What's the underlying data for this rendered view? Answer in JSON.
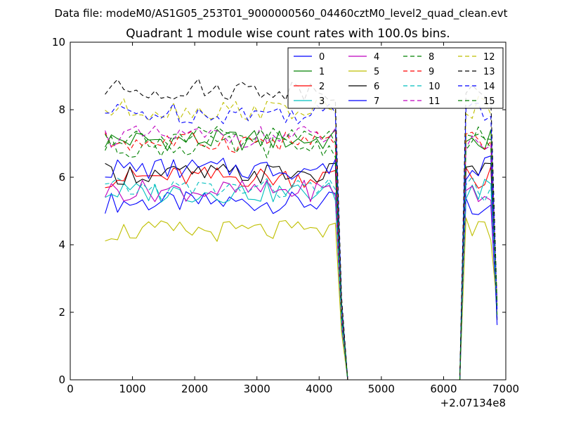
{
  "suptitle": "Data file: modeM0/AS1G05_253T01_9000000560_04460cztM0_level2_quad_clean.evt",
  "chart_data": {
    "type": "line",
    "title": "Quadrant 1 module wise count rates with 100.0s bins.",
    "xlabel": "",
    "ylabel": "",
    "xlim": [
      0,
      7000
    ],
    "ylim": [
      0,
      10
    ],
    "x_offset_label": "+2.07134e8",
    "xticks": [
      0,
      1000,
      2000,
      3000,
      4000,
      5000,
      6000,
      7000
    ],
    "xtick_labels": [
      "0",
      "1000",
      "2000",
      "3000",
      "4000",
      "5000",
      "6000",
      "7000"
    ],
    "yticks": [
      0,
      2,
      4,
      6,
      8,
      10
    ],
    "ytick_labels": [
      "0",
      "2",
      "4",
      "6",
      "8",
      "10"
    ],
    "grid": false,
    "legend_position": "top-right",
    "legend_columns": 4,
    "x": [
      560,
      660,
      760,
      860,
      960,
      1060,
      1160,
      1260,
      1360,
      1460,
      1560,
      1660,
      1760,
      1860,
      1960,
      2060,
      2160,
      2260,
      2360,
      2460,
      2560,
      2660,
      2760,
      2860,
      2960,
      3060,
      3160,
      3260,
      3360,
      3460,
      3560,
      3660,
      3760,
      3860,
      3960,
      4060,
      4160,
      4260,
      4360,
      4460,
      6260,
      6360,
      6460,
      6560,
      6660,
      6760,
      6860
    ],
    "series": [
      {
        "name": "0",
        "color": "#0000ff",
        "dash": "solid",
        "level": 5.25
      },
      {
        "name": "1",
        "color": "#008000",
        "dash": "solid",
        "level": 7.1
      },
      {
        "name": "2",
        "color": "#ff0000",
        "dash": "solid",
        "level": 6.0
      },
      {
        "name": "3",
        "color": "#00bfbf",
        "dash": "solid",
        "level": 5.55
      },
      {
        "name": "4",
        "color": "#bf00bf",
        "dash": "solid",
        "level": 5.6
      },
      {
        "name": "5",
        "color": "#bfbf00",
        "dash": "solid",
        "level": 4.4
      },
      {
        "name": "6",
        "color": "#000000",
        "dash": "solid",
        "level": 6.1
      },
      {
        "name": "7",
        "color": "#0000ff",
        "dash": "solid",
        "level": 6.25
      },
      {
        "name": "8",
        "color": "#008000",
        "dash": "dashed",
        "level": 6.9
      },
      {
        "name": "9",
        "color": "#ff0000",
        "dash": "dashed",
        "level": 7.05
      },
      {
        "name": "10",
        "color": "#00bfbf",
        "dash": "dashed",
        "level": 5.65
      },
      {
        "name": "11",
        "color": "#bf00bf",
        "dash": "dashed",
        "level": 7.2
      },
      {
        "name": "12",
        "color": "#bfbf00",
        "dash": "dashed",
        "level": 8.0
      },
      {
        "name": "13",
        "color": "#000000",
        "dash": "dashed",
        "level": 8.6
      },
      {
        "name": "14",
        "color": "#0000ff",
        "dash": "dashed",
        "level": 7.9
      },
      {
        "name": "15",
        "color": "#008000",
        "dash": "dashed",
        "level": 7.2
      }
    ]
  }
}
